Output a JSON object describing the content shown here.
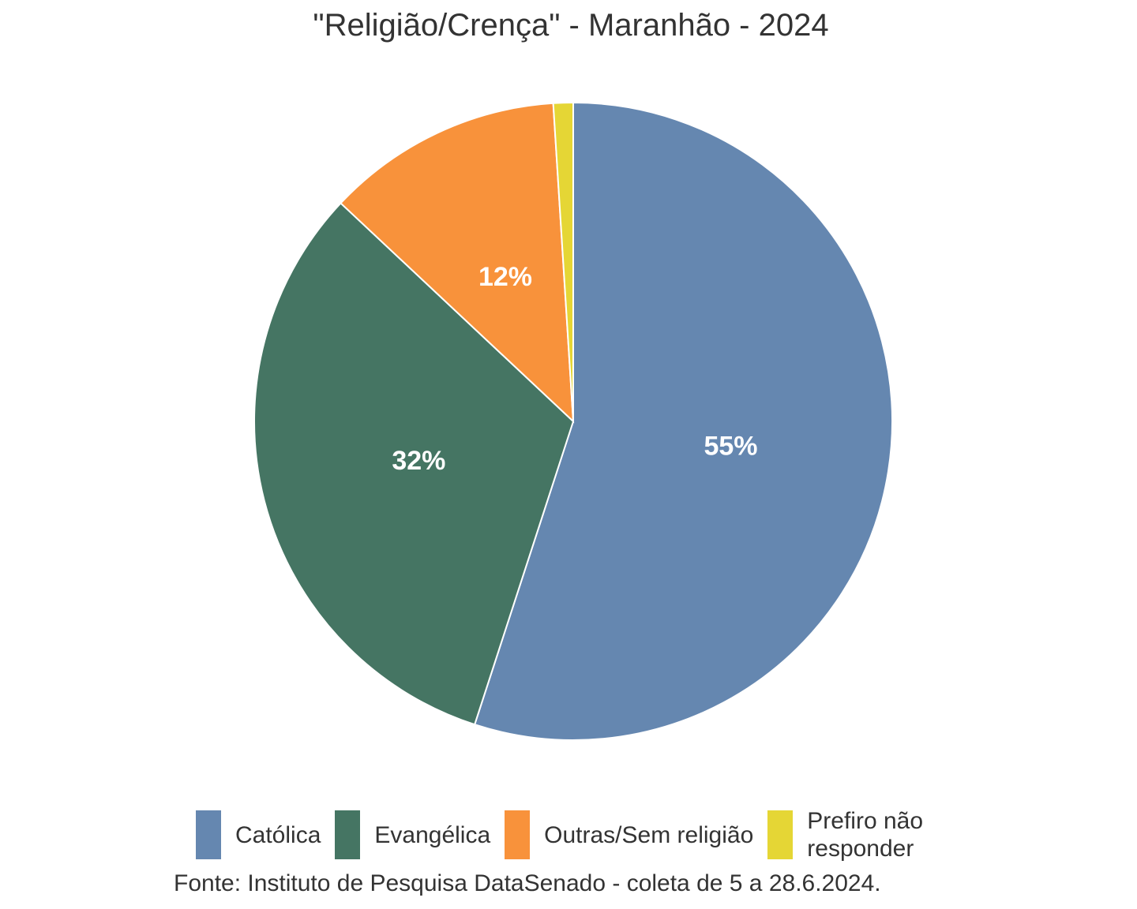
{
  "chart_data": {
    "type": "pie",
    "title": "\"Religião/Crença\" - Maranhão - 2024",
    "categories": [
      "Católica",
      "Evangélica",
      "Outras/Sem religião",
      "Prefiro não responder"
    ],
    "values": [
      55,
      32,
      12,
      1
    ],
    "labels": [
      "55%",
      "32%",
      "12%",
      ""
    ],
    "colors": [
      "#6587b0",
      "#457563",
      "#f8923b",
      "#e5d635"
    ],
    "start": "12 o'clock",
    "direction": "clockwise",
    "legend_position": "bottom",
    "source": "Fonte: Instituto de Pesquisa DataSenado - coleta de 5 a 28.6.2024."
  }
}
